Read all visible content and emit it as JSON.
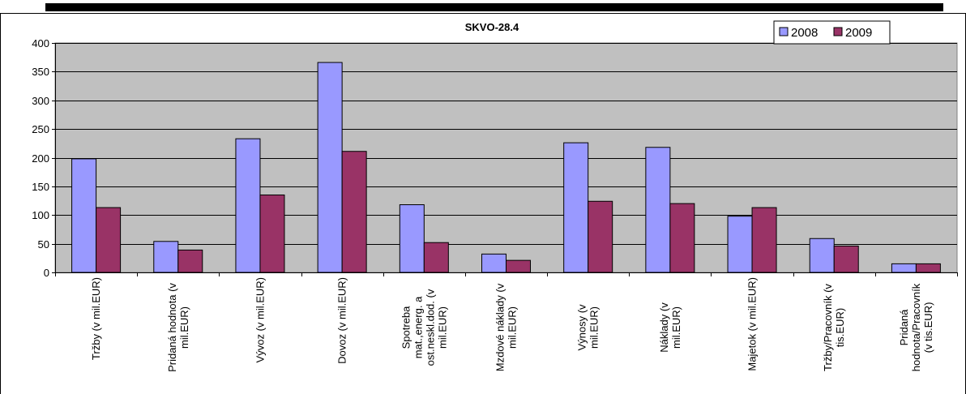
{
  "chart_data": {
    "type": "bar",
    "title": "SKVO-28.4",
    "categories": [
      [
        "Tržby (v mil.EUR)"
      ],
      [
        "Pridaná hodnota (v",
        "mil.EUR)"
      ],
      [
        "Vývoz (v mil.EUR)"
      ],
      [
        "Dovoz (v mil.EUR)"
      ],
      [
        "Spotreba",
        "mat.,energ. a",
        "ost.neskl.dod. (v",
        "mil.EUR)"
      ],
      [
        "Mzdové náklady (v",
        "mil.EUR)"
      ],
      [
        "Výnosy (v",
        "mil.EUR)"
      ],
      [
        "Náklady (v",
        "mil.EUR)"
      ],
      [
        "Majetok (v mil.EUR)"
      ],
      [
        "Tržby/Pracovník (v",
        "tis.EUR)"
      ],
      [
        "Pridaná",
        "hodnota/Pracovník",
        "(v tis.EUR)"
      ]
    ],
    "series": [
      {
        "name": "2008",
        "color": "#9999ff",
        "values": [
          198,
          54,
          233,
          366,
          118,
          32,
          226,
          218,
          98,
          59,
          15
        ]
      },
      {
        "name": "2009",
        "color": "#993366",
        "values": [
          113,
          39,
          135,
          211,
          52,
          21,
          124,
          120,
          113,
          46,
          15
        ]
      }
    ],
    "yticks": [
      0,
      50,
      100,
      150,
      200,
      250,
      300,
      350,
      400
    ],
    "ylim": [
      0,
      400
    ],
    "grid": true,
    "legend": "top-right",
    "plot_background": "#c0c0c0"
  }
}
